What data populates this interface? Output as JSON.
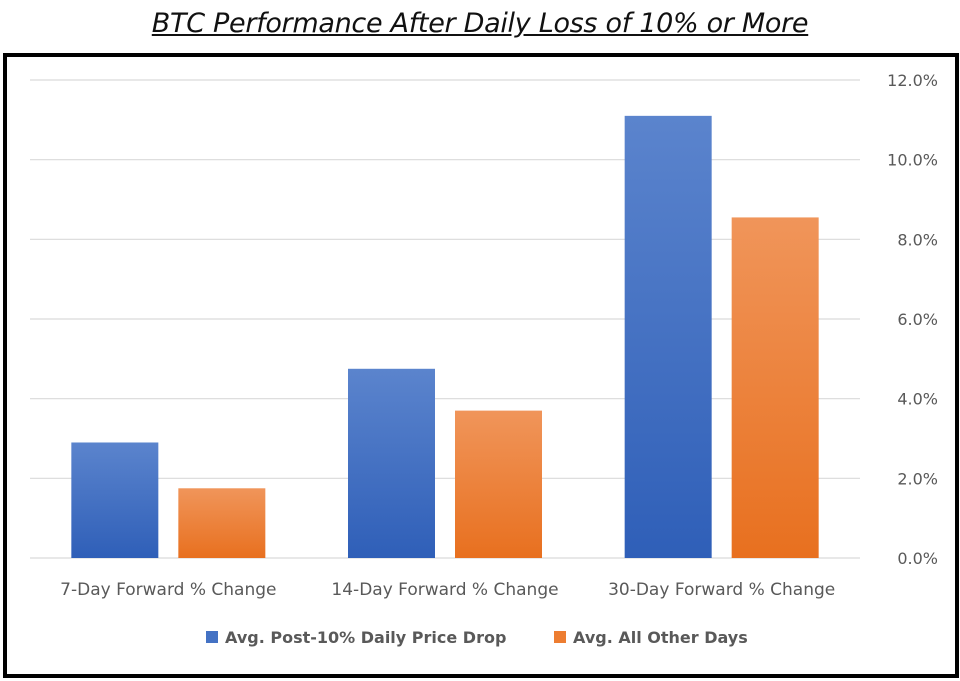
{
  "chart_data": {
    "type": "bar",
    "title": "BTC Performance After Daily Loss of 10% or More",
    "categories": [
      "7-Day Forward % Change",
      "14-Day Forward % Change",
      "30-Day Forward % Change"
    ],
    "series": [
      {
        "name": "Avg. Post-10% Daily Price Drop",
        "values": [
          2.9,
          4.75,
          11.1
        ],
        "color": "#4472C4"
      },
      {
        "name": "Avg. All Other Days",
        "values": [
          1.75,
          3.7,
          8.55
        ],
        "color": "#ED7D31"
      }
    ],
    "ylim": [
      0,
      12
    ],
    "yticks": [
      "0.0%",
      "2.0%",
      "4.0%",
      "6.0%",
      "8.0%",
      "10.0%",
      "12.0%"
    ],
    "ytick_values": [
      0,
      2,
      4,
      6,
      8,
      10,
      12
    ],
    "y_axis_side": "right",
    "grid": true,
    "legend_position": "bottom"
  }
}
